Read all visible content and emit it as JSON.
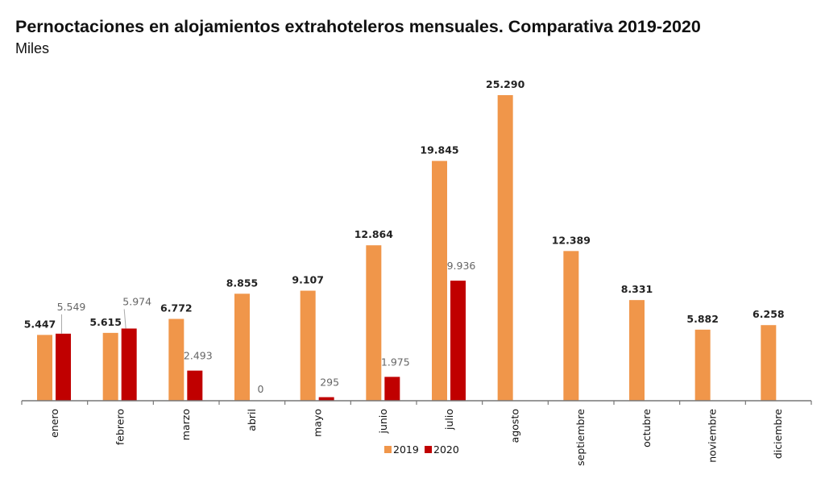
{
  "chart_data": {
    "type": "bar",
    "title": "Pernoctaciones en alojamientos extrahoteleros mensuales. Comparativa 2019-2020",
    "subtitle": "Miles",
    "xlabel": "",
    "ylabel": "",
    "ylim": [
      0,
      25290
    ],
    "grid": false,
    "legend_position": "bottom",
    "categories": [
      "enero",
      "febrero",
      "marzo",
      "abril",
      "mayo",
      "junio",
      "julio",
      "agosto",
      "septiembre",
      "octubre",
      "noviembre",
      "diciembre"
    ],
    "series": [
      {
        "name": "2019",
        "color": "#F0964A",
        "values": [
          5447,
          5615,
          6772,
          8855,
          9107,
          12864,
          19845,
          25290,
          12389,
          8331,
          5882,
          6258
        ],
        "labels": [
          "5.447",
          "5.615",
          "6.772",
          "8.855",
          "9.107",
          "12.864",
          "19.845",
          "25.290",
          "12.389",
          "8.331",
          "5.882",
          "6.258"
        ]
      },
      {
        "name": "2020",
        "color": "#C00000",
        "values": [
          5549,
          5974,
          2493,
          0,
          295,
          1975,
          9936,
          null,
          null,
          null,
          null,
          null
        ],
        "labels": [
          "5.549",
          "5.974",
          "2.493",
          "0",
          "295",
          "1.975",
          "9.936",
          null,
          null,
          null,
          null,
          null
        ]
      }
    ]
  }
}
